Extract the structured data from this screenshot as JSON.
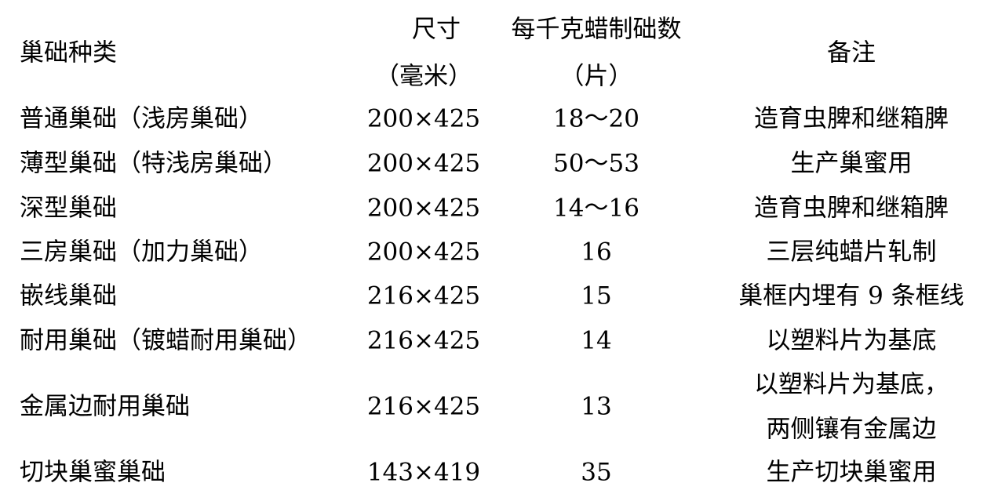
{
  "header": {
    "type": "巢础种类",
    "size": "尺寸",
    "size_unit": "（毫米）",
    "count": "每千克蜡制础数",
    "count_unit": "（片）",
    "note": "备注"
  },
  "rows": [
    {
      "type": "普通巢础（浅房巢础）",
      "size": "200×425",
      "count": "18～20",
      "note": [
        "造育虫脾和继箱脾"
      ]
    },
    {
      "type": "薄型巢础（特浅房巢础）",
      "size": "200×425",
      "count": "50～53",
      "note": [
        "生产巢蜜用"
      ]
    },
    {
      "type": "深型巢础",
      "size": "200×425",
      "count": "14～16",
      "note": [
        "造育虫脾和继箱脾"
      ]
    },
    {
      "type": "三房巢础（加力巢础）",
      "size": "200×425",
      "count": "16",
      "note": [
        "三层纯蜡片轧制"
      ]
    },
    {
      "type": "嵌线巢础",
      "size": "216×425",
      "count": "15",
      "note": [
        "巢框内埋有 9 条框线"
      ]
    },
    {
      "type": "耐用巢础（镀蜡耐用巢础）",
      "size": "216×425",
      "count": "14",
      "note": [
        "以塑料片为基底"
      ]
    },
    {
      "type": "金属边耐用巢础",
      "size": "216×425",
      "count": "13",
      "note": [
        "以塑料片为基底，",
        "两侧镶有金属边"
      ]
    },
    {
      "type": "切块巢蜜巢础",
      "size": "143×419",
      "count": "35",
      "note": [
        "生产切块巢蜜用"
      ]
    }
  ]
}
